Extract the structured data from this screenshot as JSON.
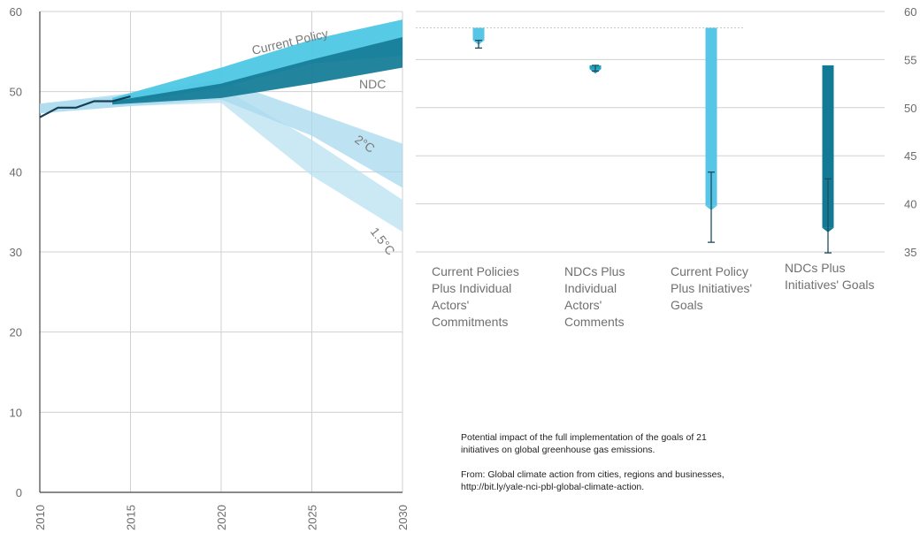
{
  "chart_data": [
    {
      "type": "area",
      "x_ticks": [
        "2010",
        "2015",
        "2020",
        "2025",
        "2030"
      ],
      "y_ticks": [
        "0",
        "10",
        "20",
        "30",
        "40",
        "50",
        "60"
      ],
      "xlim": [
        2010,
        2030
      ],
      "ylim": [
        0,
        60
      ],
      "grid": true,
      "historical": {
        "name": "",
        "x": [
          2010,
          2011,
          2012,
          2013,
          2014,
          2015
        ],
        "y": [
          46.8,
          48.0,
          48.0,
          48.8,
          48.8,
          49.4
        ]
      },
      "bands": [
        {
          "label": "1.5°C",
          "color": "#b8e1f2",
          "x": [
            2010,
            2015,
            2020,
            2025,
            2030
          ],
          "lower": [
            47.3,
            48.2,
            48.6,
            39.5,
            32.5
          ],
          "upper": [
            48.5,
            49.5,
            50.5,
            44.0,
            36.5
          ]
        },
        {
          "label": "2°C",
          "color": "#a7d8ee",
          "x": [
            2010,
            2015,
            2020,
            2025,
            2030
          ],
          "lower": [
            47.3,
            48.2,
            49.0,
            44.5,
            38.0
          ],
          "upper": [
            48.5,
            49.8,
            51.5,
            47.5,
            43.5
          ]
        },
        {
          "label": "Current Policy",
          "color": "#4ec7e4",
          "x": [
            2014,
            2020,
            2025,
            2030
          ],
          "lower": [
            48.4,
            50.5,
            53.5,
            54.5
          ],
          "upper": [
            49.2,
            53.0,
            56.5,
            59.0
          ]
        },
        {
          "label": "NDC",
          "color": "#177d98",
          "x": [
            2014,
            2020,
            2025,
            2030
          ],
          "lower": [
            48.4,
            49.2,
            51.0,
            53.0
          ],
          "upper": [
            48.8,
            51.0,
            54.0,
            56.8
          ]
        }
      ]
    },
    {
      "type": "bar",
      "y_ticks": [
        "35",
        "40",
        "45",
        "50",
        "55",
        "60"
      ],
      "ylim": [
        35,
        60
      ],
      "grid": true,
      "reference_y": 58.3,
      "categories": [
        {
          "label_lines": [
            "Current Policies",
            "Plus Individual",
            "Actors'",
            "Commitments"
          ],
          "color": "#56c5e6",
          "bar_top": 58.3,
          "bar_bottom": 57.0,
          "err_high": 57.0,
          "err_low": 56.2
        },
        {
          "label_lines": [
            "NDCs Plus",
            "Individual",
            "Actors'",
            "Comments"
          ],
          "color": "#1fa0bd",
          "bar_top": 54.4,
          "bar_bottom": 54.0,
          "err_high": 54.4,
          "err_low": 53.8
        },
        {
          "label_lines": [
            "Current Policy",
            "Plus Initiatives'",
            "Goals"
          ],
          "color": "#56c5e6",
          "bar_top": 58.3,
          "bar_bottom": 39.8,
          "err_high": 43.3,
          "err_low": 36.0
        },
        {
          "label_lines": [
            "NDCs Plus",
            "Initiatives' Goals"
          ],
          "color": "#137a96",
          "bar_top": 54.4,
          "bar_bottom": 37.5,
          "err_high": 42.6,
          "err_low": 34.9
        }
      ]
    }
  ],
  "caption": {
    "line1": "Potential impact of the full implementation of the goals of 21",
    "line2": "initiatives on global greenhouse gas emissions.",
    "line3": "From: Global climate action from cities, regions and businesses,",
    "line4": "http://bit.ly/yale-nci-pbl-global-climate-action."
  }
}
